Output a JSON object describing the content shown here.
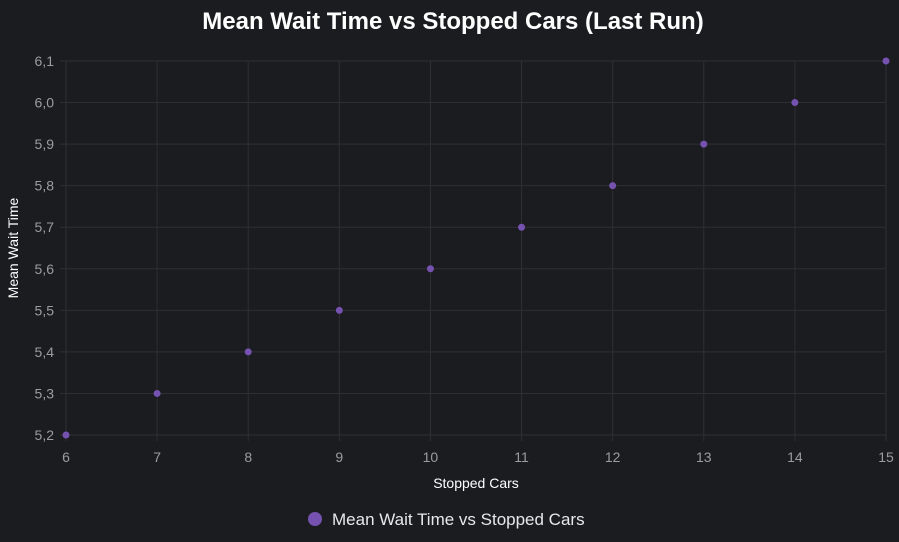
{
  "colors": {
    "background": "#1b1c20",
    "grid": "#2e2f35",
    "point": "#7652b0",
    "text": "#ffffff",
    "tick": "#9b9ca3"
  },
  "chart_data": {
    "type": "scatter",
    "title": "Mean Wait Time vs Stopped Cars (Last Run)",
    "xlabel": "Stopped Cars",
    "ylabel": "Mean Wait Time",
    "xlim": [
      6,
      15
    ],
    "ylim": [
      5.2,
      6.1
    ],
    "x_ticks": [
      "6",
      "7",
      "8",
      "9",
      "10",
      "11",
      "12",
      "13",
      "14",
      "15"
    ],
    "y_ticks": [
      "5,2",
      "5,3",
      "5,4",
      "5,5",
      "5,6",
      "5,7",
      "5,8",
      "5,9",
      "6,0",
      "6,1"
    ],
    "grid": true,
    "legend_position": "bottom",
    "series": [
      {
        "name": "Mean Wait Time vs Stopped Cars",
        "color": "#7652b0",
        "points": [
          {
            "x": 6,
            "y": 5.2
          },
          {
            "x": 7,
            "y": 5.3
          },
          {
            "x": 8,
            "y": 5.4
          },
          {
            "x": 9,
            "y": 5.5
          },
          {
            "x": 10,
            "y": 5.6
          },
          {
            "x": 11,
            "y": 5.7
          },
          {
            "x": 12,
            "y": 5.8
          },
          {
            "x": 13,
            "y": 5.9
          },
          {
            "x": 14,
            "y": 6.0
          },
          {
            "x": 15,
            "y": 6.1
          }
        ]
      }
    ]
  }
}
